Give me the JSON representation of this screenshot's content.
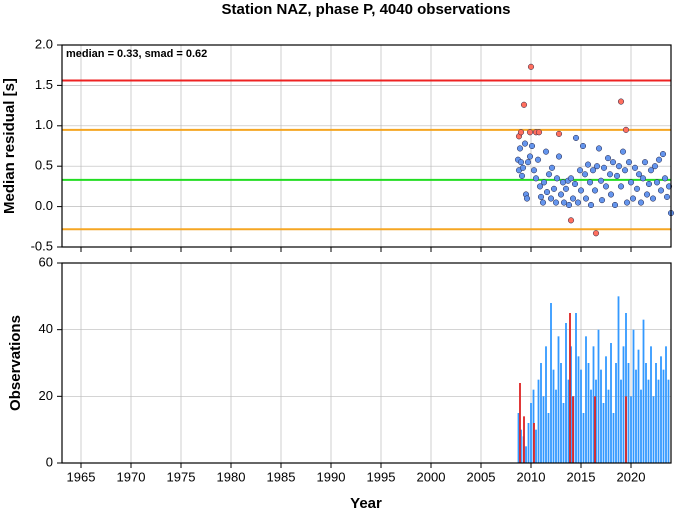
{
  "chart_data": [
    {
      "type": "scatter",
      "title": "Station NAZ, phase P, 4040 observations",
      "y_label": "Median residual [s]",
      "annotation": "median = 0.33, smad = 0.62",
      "xlim": [
        1963.1,
        2024
      ],
      "xticks": [
        1965,
        1970,
        1975,
        1980,
        1985,
        1990,
        1995,
        2000,
        2005,
        2010,
        2015,
        2020
      ],
      "ylim": [
        -0.5,
        2.0
      ],
      "yticks": [
        -0.5,
        {
          "value": 0,
          "label": "0.0"
        },
        0.5,
        {
          "value": 1,
          "label": "1.0"
        },
        1.5,
        {
          "value": 2,
          "label": "2.0"
        }
      ],
      "grid": true,
      "reference_lines": [
        {
          "value": 1.56,
          "color": "#ee2222"
        },
        {
          "value": 0.95,
          "color": "#f5a623"
        },
        {
          "value": 0.33,
          "color": "#22dd22"
        },
        {
          "value": -0.28,
          "color": "#f5a623"
        }
      ],
      "series": [
        {
          "color": "#6495ed",
          "x": [
            2008.7,
            2008.8,
            2008.9,
            2009.0,
            2009.1,
            2009.2,
            2009.4,
            2009.5,
            2009.6,
            2009.7,
            2009.9,
            2010.1,
            2010.3,
            2010.5,
            2010.7,
            2010.9,
            2011.0,
            2011.2,
            2011.3,
            2011.5,
            2011.6,
            2011.8,
            2012.0,
            2012.1,
            2012.3,
            2012.5,
            2012.6,
            2012.8,
            2013.0,
            2013.2,
            2013.3,
            2013.5,
            2013.7,
            2013.8,
            2014.0,
            2014.2,
            2014.4,
            2014.5,
            2014.7,
            2014.9,
            2015.0,
            2015.2,
            2015.4,
            2015.5,
            2015.7,
            2015.9,
            2016.0,
            2016.2,
            2016.4,
            2016.6,
            2016.8,
            2017.0,
            2017.1,
            2017.3,
            2017.5,
            2017.7,
            2017.9,
            2018.0,
            2018.2,
            2018.4,
            2018.6,
            2018.8,
            2019.0,
            2019.2,
            2019.4,
            2019.6,
            2019.8,
            2020.0,
            2020.2,
            2020.4,
            2020.6,
            2020.8,
            2021.0,
            2021.2,
            2021.4,
            2021.6,
            2021.8,
            2022.0,
            2022.2,
            2022.4,
            2022.6,
            2022.8,
            2023.0,
            2023.2,
            2023.4,
            2023.6,
            2023.8,
            2024.0
          ],
          "values": [
            0.58,
            0.45,
            0.72,
            0.55,
            0.38,
            0.48,
            0.78,
            0.15,
            0.1,
            0.55,
            0.62,
            0.75,
            0.45,
            0.35,
            0.58,
            0.25,
            0.12,
            0.05,
            0.3,
            0.68,
            0.18,
            0.4,
            0.1,
            0.48,
            0.22,
            0.05,
            0.35,
            0.62,
            0.15,
            0.3,
            0.05,
            0.22,
            0.32,
            0.02,
            0.35,
            0.1,
            0.28,
            0.85,
            0.05,
            0.45,
            0.2,
            0.75,
            0.4,
            0.1,
            0.52,
            0.3,
            0.02,
            0.45,
            0.2,
            0.5,
            0.72,
            0.32,
            0.08,
            0.48,
            0.25,
            0.6,
            0.4,
            0.15,
            0.55,
            0.02,
            0.38,
            0.5,
            0.25,
            0.68,
            0.45,
            0.05,
            0.55,
            0.3,
            0.1,
            0.48,
            0.22,
            0.4,
            0.05,
            0.35,
            0.55,
            0.15,
            0.28,
            0.45,
            0.1,
            0.5,
            0.3,
            0.58,
            0.2,
            0.65,
            0.35,
            0.12,
            0.25,
            -0.08
          ]
        },
        {
          "color": "#ff6f5e",
          "x": [
            2008.8,
            2009.0,
            2009.3,
            2010.0,
            2009.9,
            2010.5,
            2010.8,
            2012.8,
            2014.0,
            2016.5,
            2019.0,
            2019.5
          ],
          "values": [
            0.87,
            0.92,
            1.26,
            1.73,
            0.92,
            0.92,
            0.92,
            0.9,
            -0.17,
            -0.33,
            1.3,
            0.95
          ]
        }
      ]
    },
    {
      "type": "bar",
      "y_label": "Observations",
      "x_label": "Year",
      "xlim": [
        1963.1,
        2024
      ],
      "xticks": [
        1965,
        1970,
        1975,
        1980,
        1985,
        1990,
        1995,
        2000,
        2005,
        2010,
        2015,
        2020
      ],
      "ylim": [
        0,
        60
      ],
      "yticks": [
        0,
        20,
        40,
        60
      ],
      "grid": true,
      "series": [
        {
          "color": "#3399ff",
          "x": [
            2008.75,
            2009.0,
            2009.25,
            2009.5,
            2009.75,
            2010.0,
            2010.25,
            2010.5,
            2010.75,
            2011.0,
            2011.25,
            2011.5,
            2011.75,
            2012.0,
            2012.25,
            2012.5,
            2012.75,
            2013.0,
            2013.25,
            2013.5,
            2013.75,
            2014.0,
            2014.25,
            2014.5,
            2014.75,
            2015.0,
            2015.25,
            2015.5,
            2015.75,
            2016.0,
            2016.25,
            2016.5,
            2016.75,
            2017.0,
            2017.25,
            2017.5,
            2017.75,
            2018.0,
            2018.25,
            2018.5,
            2018.75,
            2019.0,
            2019.25,
            2019.5,
            2019.75,
            2020.0,
            2020.25,
            2020.5,
            2020.75,
            2021.0,
            2021.25,
            2021.5,
            2021.75,
            2022.0,
            2022.25,
            2022.5,
            2022.75,
            2023.0,
            2023.25,
            2023.5,
            2023.75
          ],
          "values": [
            15,
            10,
            8,
            5,
            12,
            18,
            22,
            10,
            25,
            30,
            20,
            35,
            15,
            48,
            28,
            22,
            38,
            30,
            18,
            42,
            25,
            35,
            20,
            45,
            32,
            28,
            15,
            38,
            30,
            22,
            35,
            25,
            40,
            28,
            18,
            32,
            22,
            36,
            15,
            30,
            50,
            25,
            35,
            45,
            30,
            20,
            40,
            28,
            34,
            22,
            43,
            30,
            25,
            35,
            20,
            30,
            25,
            32,
            28,
            35,
            25
          ]
        },
        {
          "color": "#dd2222",
          "x": [
            2008.9,
            2009.3,
            2010.3,
            2013.9,
            2014.2,
            2016.4,
            2019.5
          ],
          "values": [
            24,
            14,
            12,
            45,
            20,
            20,
            20
          ]
        }
      ]
    }
  ]
}
